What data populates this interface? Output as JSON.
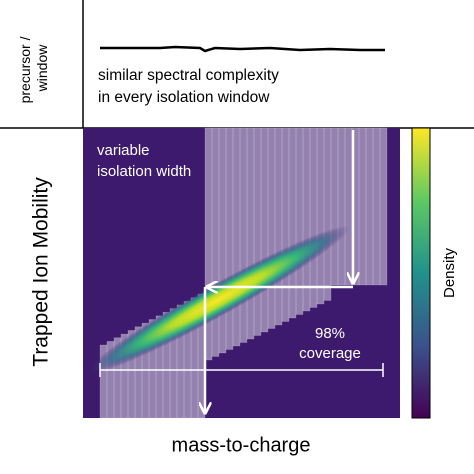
{
  "top_panel": {
    "axis_label": [
      "precursor /",
      "window"
    ],
    "note": [
      "similar spectral complexity",
      "in every isolation window"
    ]
  },
  "main_panel": {
    "y_axis_label": "Trapped Ion Mobility",
    "x_axis_label": "mass-to-charge",
    "annotation_width": [
      "variable",
      "isolation width"
    ],
    "annotation_coverage": [
      "98%",
      "coverage"
    ]
  },
  "colorbar": {
    "label": "Density"
  }
}
